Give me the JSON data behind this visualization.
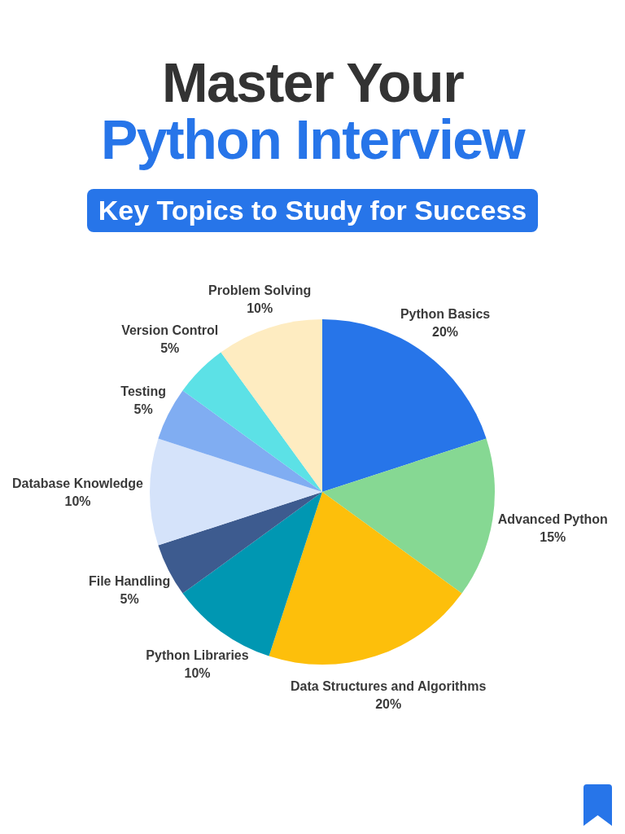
{
  "chart_data": {
    "type": "pie",
    "title": "Master Your\nPython Interview",
    "subtitle": "Key Topics to Study for Success",
    "categories": [
      "Python Basics",
      "Advanced Python",
      "Data Structures and Algorithms",
      "Python Libraries",
      "File Handling",
      "Database Knowledge",
      "Testing",
      "Version Control",
      "Problem Solving"
    ],
    "values": [
      20,
      15,
      20,
      10,
      5,
      10,
      5,
      5,
      10
    ],
    "colors": [
      "#2775e9",
      "#86d893",
      "#fdbf0b",
      "#0097b2",
      "#3d5b8f",
      "#d5e3fa",
      "#80adf2",
      "#5ce1e6",
      "#feecc1"
    ],
    "value_labels": [
      "20%",
      "15%",
      "20%",
      "10%",
      "5%",
      "10%",
      "5%",
      "5%",
      "10%"
    ]
  }
}
